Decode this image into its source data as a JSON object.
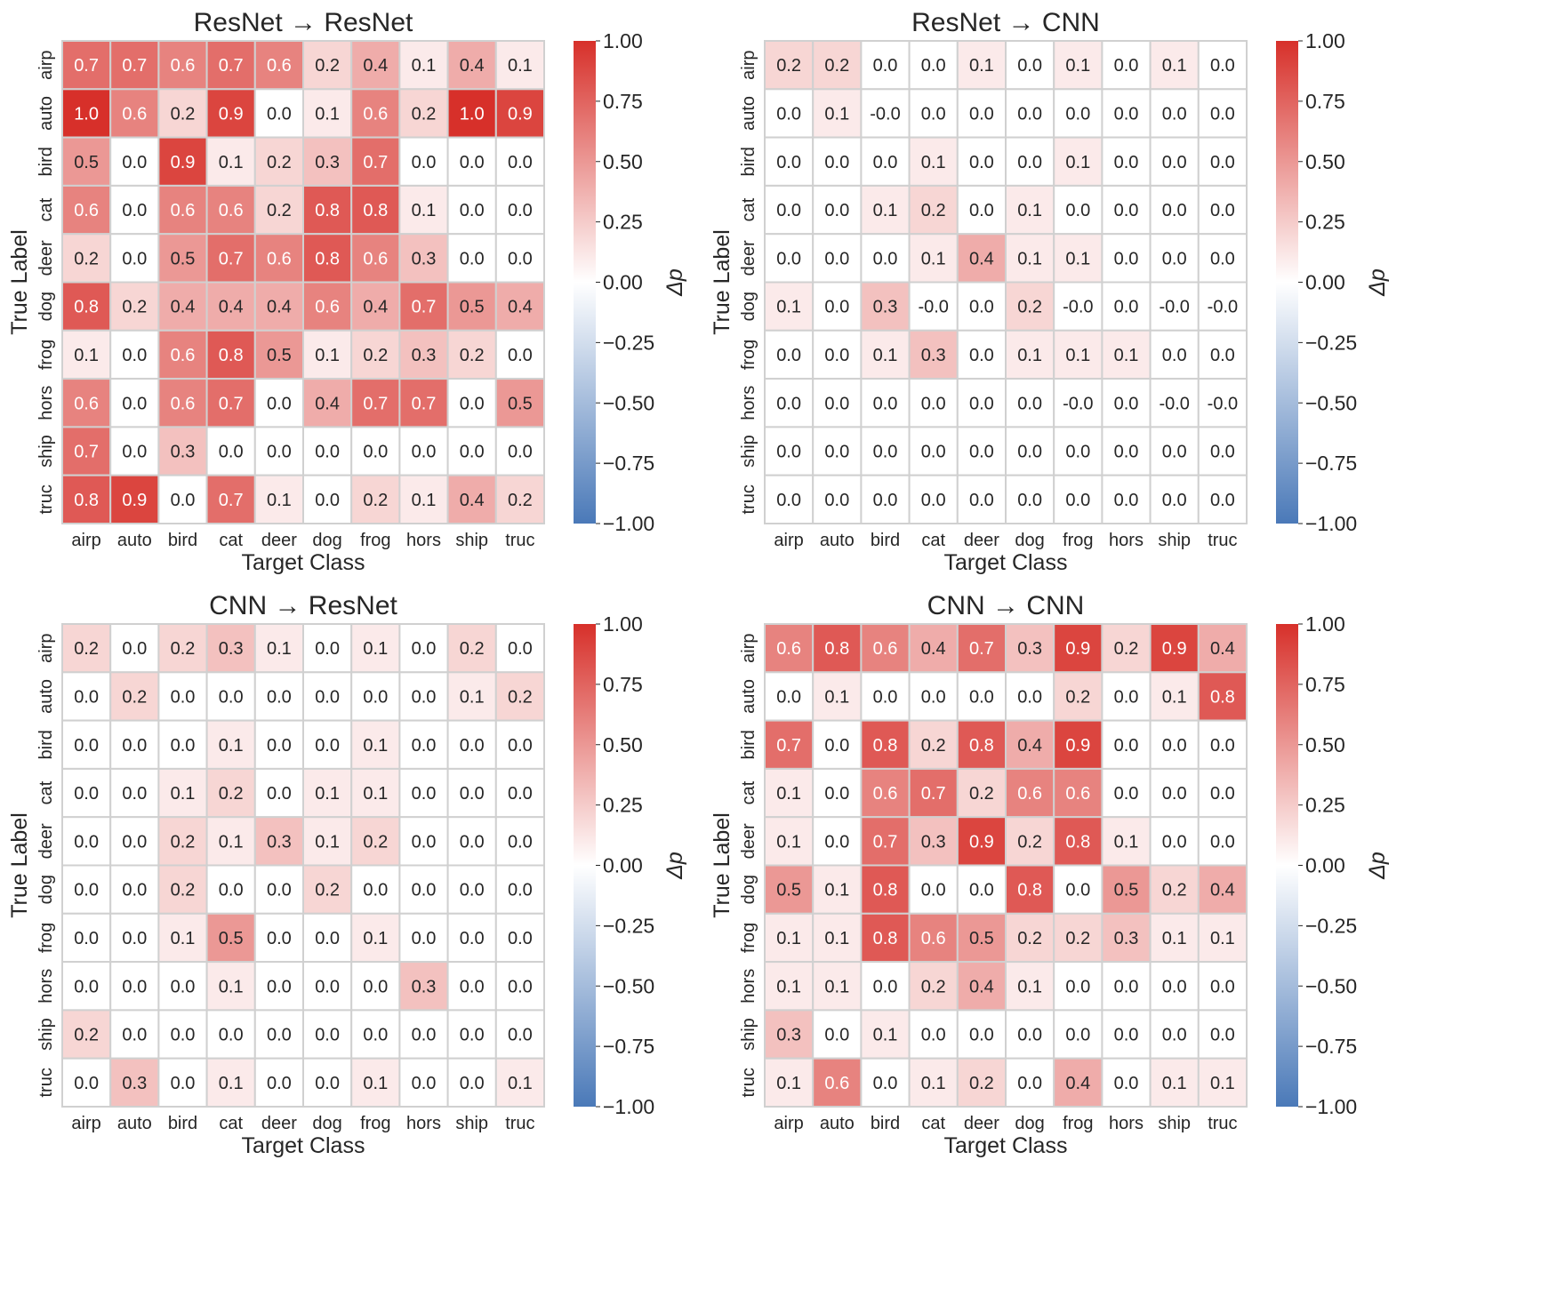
{
  "chart_data": [
    {
      "type": "heatmap",
      "title": "ResNet → ResNet",
      "xlabel": "Target Class",
      "ylabel": "True Label",
      "colorbar_label": "Δp",
      "x": [
        "airp",
        "auto",
        "bird",
        "cat",
        "deer",
        "dog",
        "frog",
        "hors",
        "ship",
        "truc"
      ],
      "y": [
        "airp",
        "auto",
        "bird",
        "cat",
        "deer",
        "dog",
        "frog",
        "hors",
        "ship",
        "truc"
      ],
      "values": [
        [
          0.7,
          0.7,
          0.6,
          0.7,
          0.6,
          0.2,
          0.4,
          0.1,
          0.4,
          0.1
        ],
        [
          1.0,
          0.6,
          0.2,
          0.9,
          0.0,
          0.1,
          0.6,
          0.2,
          1.0,
          0.9
        ],
        [
          0.5,
          0.0,
          0.9,
          0.1,
          0.2,
          0.3,
          0.7,
          0.0,
          0.0,
          0.0
        ],
        [
          0.6,
          0.0,
          0.6,
          0.6,
          0.2,
          0.8,
          0.8,
          0.1,
          0.0,
          0.0
        ],
        [
          0.2,
          0.0,
          0.5,
          0.7,
          0.6,
          0.8,
          0.6,
          0.3,
          0.0,
          0.0
        ],
        [
          0.8,
          0.2,
          0.4,
          0.4,
          0.4,
          0.6,
          0.4,
          0.7,
          0.5,
          0.4
        ],
        [
          0.1,
          0.0,
          0.6,
          0.8,
          0.5,
          0.1,
          0.2,
          0.3,
          0.2,
          0.0
        ],
        [
          0.6,
          0.0,
          0.6,
          0.7,
          0.0,
          0.4,
          0.7,
          0.7,
          0.0,
          0.5
        ],
        [
          0.7,
          0.0,
          0.3,
          0.0,
          0.0,
          0.0,
          0.0,
          0.0,
          0.0,
          0.0
        ],
        [
          0.8,
          0.9,
          0.0,
          0.7,
          0.1,
          0.0,
          0.2,
          0.1,
          0.4,
          0.2
        ]
      ],
      "labels": [
        [
          "0.7",
          "0.7",
          "0.6",
          "0.7",
          "0.6",
          "0.2",
          "0.4",
          "0.1",
          "0.4",
          "0.1"
        ],
        [
          "1.0",
          "0.6",
          "0.2",
          "0.9",
          "0.0",
          "0.1",
          "0.6",
          "0.2",
          "1.0",
          "0.9"
        ],
        [
          "0.5",
          "0.0",
          "0.9",
          "0.1",
          "0.2",
          "0.3",
          "0.7",
          "0.0",
          "0.0",
          "0.0"
        ],
        [
          "0.6",
          "0.0",
          "0.6",
          "0.6",
          "0.2",
          "0.8",
          "0.8",
          "0.1",
          "0.0",
          "0.0"
        ],
        [
          "0.2",
          "0.0",
          "0.5",
          "0.7",
          "0.6",
          "0.8",
          "0.6",
          "0.3",
          "0.0",
          "0.0"
        ],
        [
          "0.8",
          "0.2",
          "0.4",
          "0.4",
          "0.4",
          "0.6",
          "0.4",
          "0.7",
          "0.5",
          "0.4"
        ],
        [
          "0.1",
          "0.0",
          "0.6",
          "0.8",
          "0.5",
          "0.1",
          "0.2",
          "0.3",
          "0.2",
          "0.0"
        ],
        [
          "0.6",
          "0.0",
          "0.6",
          "0.7",
          "0.0",
          "0.4",
          "0.7",
          "0.7",
          "0.0",
          "0.5"
        ],
        [
          "0.7",
          "0.0",
          "0.3",
          "0.0",
          "0.0",
          "0.0",
          "0.0",
          "0.0",
          "0.0",
          "0.0"
        ],
        [
          "0.8",
          "0.9",
          "0.0",
          "0.7",
          "0.1",
          "0.0",
          "0.2",
          "0.1",
          "0.4",
          "0.2"
        ]
      ],
      "vmin": -1.0,
      "vmax": 1.0,
      "colorbar_ticks": [
        "1.00",
        "0.75",
        "0.50",
        "0.25",
        "0.00",
        "−0.25",
        "−0.50",
        "−0.75",
        "−1.00"
      ]
    },
    {
      "type": "heatmap",
      "title": "ResNet → CNN",
      "xlabel": "Target Class",
      "ylabel": "True Label",
      "colorbar_label": "Δp",
      "x": [
        "airp",
        "auto",
        "bird",
        "cat",
        "deer",
        "dog",
        "frog",
        "hors",
        "ship",
        "truc"
      ],
      "y": [
        "airp",
        "auto",
        "bird",
        "cat",
        "deer",
        "dog",
        "frog",
        "hors",
        "ship",
        "truc"
      ],
      "values": [
        [
          0.2,
          0.2,
          0.0,
          0.0,
          0.1,
          0.0,
          0.1,
          0.0,
          0.1,
          0.0
        ],
        [
          0.0,
          0.1,
          -0.0,
          0.0,
          0.0,
          0.0,
          0.0,
          0.0,
          0.0,
          0.0
        ],
        [
          0.0,
          0.0,
          0.0,
          0.1,
          0.0,
          0.0,
          0.1,
          0.0,
          0.0,
          0.0
        ],
        [
          0.0,
          0.0,
          0.1,
          0.2,
          0.0,
          0.1,
          0.0,
          0.0,
          0.0,
          0.0
        ],
        [
          0.0,
          0.0,
          0.0,
          0.1,
          0.4,
          0.1,
          0.1,
          0.0,
          0.0,
          0.0
        ],
        [
          0.1,
          0.0,
          0.3,
          -0.0,
          0.0,
          0.2,
          -0.0,
          0.0,
          -0.0,
          -0.0
        ],
        [
          0.0,
          0.0,
          0.1,
          0.3,
          0.0,
          0.1,
          0.1,
          0.1,
          0.0,
          0.0
        ],
        [
          0.0,
          0.0,
          0.0,
          0.0,
          0.0,
          0.0,
          -0.0,
          0.0,
          -0.0,
          -0.0
        ],
        [
          0.0,
          0.0,
          0.0,
          0.0,
          0.0,
          0.0,
          0.0,
          0.0,
          0.0,
          0.0
        ],
        [
          0.0,
          0.0,
          0.0,
          0.0,
          0.0,
          0.0,
          0.0,
          0.0,
          0.0,
          0.0
        ]
      ],
      "labels": [
        [
          "0.2",
          "0.2",
          "0.0",
          "0.0",
          "0.1",
          "0.0",
          "0.1",
          "0.0",
          "0.1",
          "0.0"
        ],
        [
          "0.0",
          "0.1",
          "-0.0",
          "0.0",
          "0.0",
          "0.0",
          "0.0",
          "0.0",
          "0.0",
          "0.0"
        ],
        [
          "0.0",
          "0.0",
          "0.0",
          "0.1",
          "0.0",
          "0.0",
          "0.1",
          "0.0",
          "0.0",
          "0.0"
        ],
        [
          "0.0",
          "0.0",
          "0.1",
          "0.2",
          "0.0",
          "0.1",
          "0.0",
          "0.0",
          "0.0",
          "0.0"
        ],
        [
          "0.0",
          "0.0",
          "0.0",
          "0.1",
          "0.4",
          "0.1",
          "0.1",
          "0.0",
          "0.0",
          "0.0"
        ],
        [
          "0.1",
          "0.0",
          "0.3",
          "-0.0",
          "0.0",
          "0.2",
          "-0.0",
          "0.0",
          "-0.0",
          "-0.0"
        ],
        [
          "0.0",
          "0.0",
          "0.1",
          "0.3",
          "0.0",
          "0.1",
          "0.1",
          "0.1",
          "0.0",
          "0.0"
        ],
        [
          "0.0",
          "0.0",
          "0.0",
          "0.0",
          "0.0",
          "0.0",
          "-0.0",
          "0.0",
          "-0.0",
          "-0.0"
        ],
        [
          "0.0",
          "0.0",
          "0.0",
          "0.0",
          "0.0",
          "0.0",
          "0.0",
          "0.0",
          "0.0",
          "0.0"
        ],
        [
          "0.0",
          "0.0",
          "0.0",
          "0.0",
          "0.0",
          "0.0",
          "0.0",
          "0.0",
          "0.0",
          "0.0"
        ]
      ],
      "vmin": -1.0,
      "vmax": 1.0,
      "colorbar_ticks": [
        "1.00",
        "0.75",
        "0.50",
        "0.25",
        "0.00",
        "−0.25",
        "−0.50",
        "−0.75",
        "−1.00"
      ]
    },
    {
      "type": "heatmap",
      "title": "CNN → ResNet",
      "xlabel": "Target Class",
      "ylabel": "True Label",
      "colorbar_label": "Δp",
      "x": [
        "airp",
        "auto",
        "bird",
        "cat",
        "deer",
        "dog",
        "frog",
        "hors",
        "ship",
        "truc"
      ],
      "y": [
        "airp",
        "auto",
        "bird",
        "cat",
        "deer",
        "dog",
        "frog",
        "hors",
        "ship",
        "truc"
      ],
      "values": [
        [
          0.2,
          0.0,
          0.2,
          0.3,
          0.1,
          0.0,
          0.1,
          0.0,
          0.2,
          0.0
        ],
        [
          0.0,
          0.2,
          0.0,
          0.0,
          0.0,
          0.0,
          0.0,
          0.0,
          0.1,
          0.2
        ],
        [
          0.0,
          0.0,
          0.0,
          0.1,
          0.0,
          0.0,
          0.1,
          0.0,
          0.0,
          0.0
        ],
        [
          0.0,
          0.0,
          0.1,
          0.2,
          0.0,
          0.1,
          0.1,
          0.0,
          0.0,
          0.0
        ],
        [
          0.0,
          0.0,
          0.2,
          0.1,
          0.3,
          0.1,
          0.2,
          0.0,
          0.0,
          0.0
        ],
        [
          0.0,
          0.0,
          0.2,
          0.0,
          0.0,
          0.2,
          0.0,
          0.0,
          0.0,
          0.0
        ],
        [
          0.0,
          0.0,
          0.1,
          0.5,
          0.0,
          0.0,
          0.1,
          0.0,
          0.0,
          0.0
        ],
        [
          0.0,
          0.0,
          0.0,
          0.1,
          0.0,
          0.0,
          0.0,
          0.3,
          0.0,
          0.0
        ],
        [
          0.2,
          0.0,
          0.0,
          0.0,
          0.0,
          0.0,
          0.0,
          0.0,
          0.0,
          0.0
        ],
        [
          0.0,
          0.3,
          0.0,
          0.1,
          0.0,
          0.0,
          0.1,
          0.0,
          0.0,
          0.1
        ]
      ],
      "labels": [
        [
          "0.2",
          "0.0",
          "0.2",
          "0.3",
          "0.1",
          "0.0",
          "0.1",
          "0.0",
          "0.2",
          "0.0"
        ],
        [
          "0.0",
          "0.2",
          "0.0",
          "0.0",
          "0.0",
          "0.0",
          "0.0",
          "0.0",
          "0.1",
          "0.2"
        ],
        [
          "0.0",
          "0.0",
          "0.0",
          "0.1",
          "0.0",
          "0.0",
          "0.1",
          "0.0",
          "0.0",
          "0.0"
        ],
        [
          "0.0",
          "0.0",
          "0.1",
          "0.2",
          "0.0",
          "0.1",
          "0.1",
          "0.0",
          "0.0",
          "0.0"
        ],
        [
          "0.0",
          "0.0",
          "0.2",
          "0.1",
          "0.3",
          "0.1",
          "0.2",
          "0.0",
          "0.0",
          "0.0"
        ],
        [
          "0.0",
          "0.0",
          "0.2",
          "0.0",
          "0.0",
          "0.2",
          "0.0",
          "0.0",
          "0.0",
          "0.0"
        ],
        [
          "0.0",
          "0.0",
          "0.1",
          "0.5",
          "0.0",
          "0.0",
          "0.1",
          "0.0",
          "0.0",
          "0.0"
        ],
        [
          "0.0",
          "0.0",
          "0.0",
          "0.1",
          "0.0",
          "0.0",
          "0.0",
          "0.3",
          "0.0",
          "0.0"
        ],
        [
          "0.2",
          "0.0",
          "0.0",
          "0.0",
          "0.0",
          "0.0",
          "0.0",
          "0.0",
          "0.0",
          "0.0"
        ],
        [
          "0.0",
          "0.3",
          "0.0",
          "0.1",
          "0.0",
          "0.0",
          "0.1",
          "0.0",
          "0.0",
          "0.1"
        ]
      ],
      "vmin": -1.0,
      "vmax": 1.0,
      "colorbar_ticks": [
        "1.00",
        "0.75",
        "0.50",
        "0.25",
        "0.00",
        "−0.25",
        "−0.50",
        "−0.75",
        "−1.00"
      ]
    },
    {
      "type": "heatmap",
      "title": "CNN → CNN",
      "xlabel": "Target Class",
      "ylabel": "True Label",
      "colorbar_label": "Δp",
      "x": [
        "airp",
        "auto",
        "bird",
        "cat",
        "deer",
        "dog",
        "frog",
        "hors",
        "ship",
        "truc"
      ],
      "y": [
        "airp",
        "auto",
        "bird",
        "cat",
        "deer",
        "dog",
        "frog",
        "hors",
        "ship",
        "truc"
      ],
      "values": [
        [
          0.6,
          0.8,
          0.6,
          0.4,
          0.7,
          0.3,
          0.9,
          0.2,
          0.9,
          0.4
        ],
        [
          0.0,
          0.1,
          0.0,
          0.0,
          0.0,
          0.0,
          0.2,
          0.0,
          0.1,
          0.8
        ],
        [
          0.7,
          0.0,
          0.8,
          0.2,
          0.8,
          0.4,
          0.9,
          0.0,
          0.0,
          0.0
        ],
        [
          0.1,
          0.0,
          0.6,
          0.7,
          0.2,
          0.6,
          0.6,
          0.0,
          0.0,
          0.0
        ],
        [
          0.1,
          0.0,
          0.7,
          0.3,
          0.9,
          0.2,
          0.8,
          0.1,
          0.0,
          0.0
        ],
        [
          0.5,
          0.1,
          0.8,
          0.0,
          0.0,
          0.8,
          0.0,
          0.5,
          0.2,
          0.4
        ],
        [
          0.1,
          0.1,
          0.8,
          0.6,
          0.5,
          0.2,
          0.2,
          0.3,
          0.1,
          0.1
        ],
        [
          0.1,
          0.1,
          0.0,
          0.2,
          0.4,
          0.1,
          0.0,
          0.0,
          0.0,
          0.0
        ],
        [
          0.3,
          0.0,
          0.1,
          0.0,
          0.0,
          0.0,
          0.0,
          0.0,
          0.0,
          0.0
        ],
        [
          0.1,
          0.6,
          0.0,
          0.1,
          0.2,
          0.0,
          0.4,
          0.0,
          0.1,
          0.1
        ]
      ],
      "labels": [
        [
          "0.6",
          "0.8",
          "0.6",
          "0.4",
          "0.7",
          "0.3",
          "0.9",
          "0.2",
          "0.9",
          "0.4"
        ],
        [
          "0.0",
          "0.1",
          "0.0",
          "0.0",
          "0.0",
          "0.0",
          "0.2",
          "0.0",
          "0.1",
          "0.8"
        ],
        [
          "0.7",
          "0.0",
          "0.8",
          "0.2",
          "0.8",
          "0.4",
          "0.9",
          "0.0",
          "0.0",
          "0.0"
        ],
        [
          "0.1",
          "0.0",
          "0.6",
          "0.7",
          "0.2",
          "0.6",
          "0.6",
          "0.0",
          "0.0",
          "0.0"
        ],
        [
          "0.1",
          "0.0",
          "0.7",
          "0.3",
          "0.9",
          "0.2",
          "0.8",
          "0.1",
          "0.0",
          "0.0"
        ],
        [
          "0.5",
          "0.1",
          "0.8",
          "0.0",
          "0.0",
          "0.8",
          "0.0",
          "0.5",
          "0.2",
          "0.4"
        ],
        [
          "0.1",
          "0.1",
          "0.8",
          "0.6",
          "0.5",
          "0.2",
          "0.2",
          "0.3",
          "0.1",
          "0.1"
        ],
        [
          "0.1",
          "0.1",
          "0.0",
          "0.2",
          "0.4",
          "0.1",
          "0.0",
          "0.0",
          "0.0",
          "0.0"
        ],
        [
          "0.3",
          "0.0",
          "0.1",
          "0.0",
          "0.0",
          "0.0",
          "0.0",
          "0.0",
          "0.0",
          "0.0"
        ],
        [
          "0.1",
          "0.6",
          "0.0",
          "0.1",
          "0.2",
          "0.0",
          "0.4",
          "0.0",
          "0.1",
          "0.1"
        ]
      ],
      "vmin": -1.0,
      "vmax": 1.0,
      "colorbar_ticks": [
        "1.00",
        "0.75",
        "0.50",
        "0.25",
        "0.00",
        "−0.25",
        "−0.50",
        "−0.75",
        "−1.00"
      ]
    }
  ],
  "colors": {
    "high": "#d7302a",
    "mid": "#ffffff",
    "low": "#4a79b8",
    "grid": "#d0d0d0",
    "text_dark": "#262626",
    "text_light": "#ffffff"
  }
}
